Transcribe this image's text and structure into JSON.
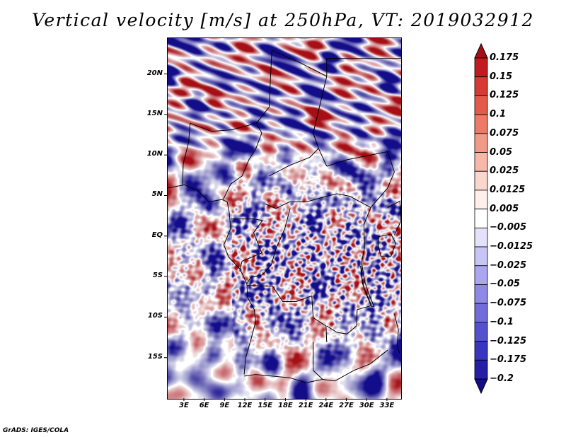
{
  "title": "Vertical velocity [m/s] at 250hPa, VT: 2019032912",
  "credit": "GrADS: IGES/COLA",
  "map": {
    "lat_labels": [
      "20N",
      "15N",
      "10N",
      "5N",
      "EQ",
      "5S",
      "10S",
      "15S"
    ],
    "lat_values": [
      20,
      15,
      10,
      5,
      0,
      -5,
      -10,
      -15
    ],
    "lon_labels": [
      "3E",
      "6E",
      "9E",
      "12E",
      "15E",
      "18E",
      "21E",
      "24E",
      "27E",
      "30E",
      "33E"
    ],
    "lon_values": [
      3,
      6,
      9,
      12,
      15,
      18,
      21,
      24,
      27,
      30,
      33
    ],
    "lon_range": [
      0.5,
      35
    ],
    "lat_range": [
      -20,
      24.5
    ],
    "field": "vertical velocity",
    "units": "m/s",
    "level": "250hPa"
  },
  "colorbar": {
    "labels": [
      "0.175",
      "0.15",
      "0.125",
      "0.1",
      "0.075",
      "0.05",
      "0.025",
      "0.0125",
      "0.005",
      "−0.005",
      "−0.0125",
      "−0.025",
      "−0.05",
      "−0.075",
      "−0.1",
      "−0.125",
      "−0.175",
      "−0.2"
    ],
    "colors": [
      "#a50f15",
      "#c21b1f",
      "#d63a32",
      "#e35a4b",
      "#ec7a66",
      "#f29a88",
      "#f7b8aa",
      "#fbd6cc",
      "#fff0ec",
      "#ffffff",
      "#e4e2fb",
      "#c8c4f5",
      "#aba6ef",
      "#8e88e6",
      "#716bdc",
      "#5450cf",
      "#3835c0",
      "#231fa6",
      "#140d8a"
    ]
  },
  "colors": {
    "positive": "#d23a32",
    "negative": "#3b3bd6",
    "neutral": "#ffffff"
  }
}
